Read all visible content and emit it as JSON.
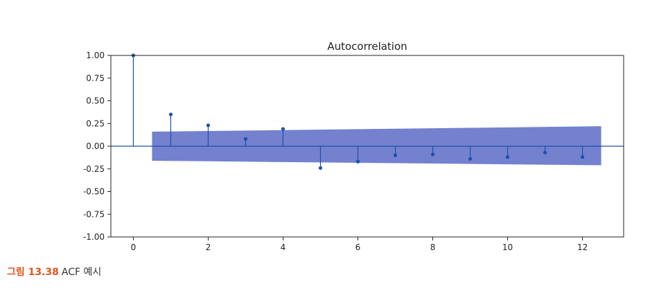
{
  "chart_data": {
    "type": "stem",
    "title": "Autocorrelation",
    "xlabel": "",
    "ylabel": "",
    "x": [
      0,
      1,
      2,
      3,
      4,
      5,
      6,
      7,
      8,
      9,
      10,
      11,
      12
    ],
    "values": [
      1.0,
      0.35,
      0.23,
      0.08,
      0.19,
      -0.24,
      -0.17,
      -0.1,
      -0.09,
      -0.14,
      -0.12,
      -0.07,
      -0.12
    ],
    "confidence_band": {
      "x": [
        0.5,
        12.5
      ],
      "upper": [
        0.16,
        0.22
      ],
      "lower": [
        -0.16,
        -0.21
      ]
    },
    "xlim": [
      -0.6,
      13.1
    ],
    "ylim": [
      -1.0,
      1.0
    ],
    "xticks": [
      0,
      2,
      4,
      6,
      8,
      10,
      12
    ],
    "xtick_labels": [
      "0",
      "2",
      "4",
      "6",
      "8",
      "10",
      "12"
    ],
    "yticks": [
      -1.0,
      -0.75,
      -0.5,
      -0.25,
      0.0,
      0.25,
      0.5,
      0.75,
      1.0
    ],
    "ytick_labels": [
      "-1.00",
      "-0.75",
      "-0.50",
      "-0.25",
      "0.00",
      "0.25",
      "0.50",
      "0.75",
      "1.00"
    ],
    "grid": false,
    "colors": {
      "stem": "#1f4fa8",
      "band": "#5b6bc7",
      "axis": "#222222"
    }
  },
  "caption": {
    "number": "그림 13.38",
    "text": "ACF 예시"
  }
}
